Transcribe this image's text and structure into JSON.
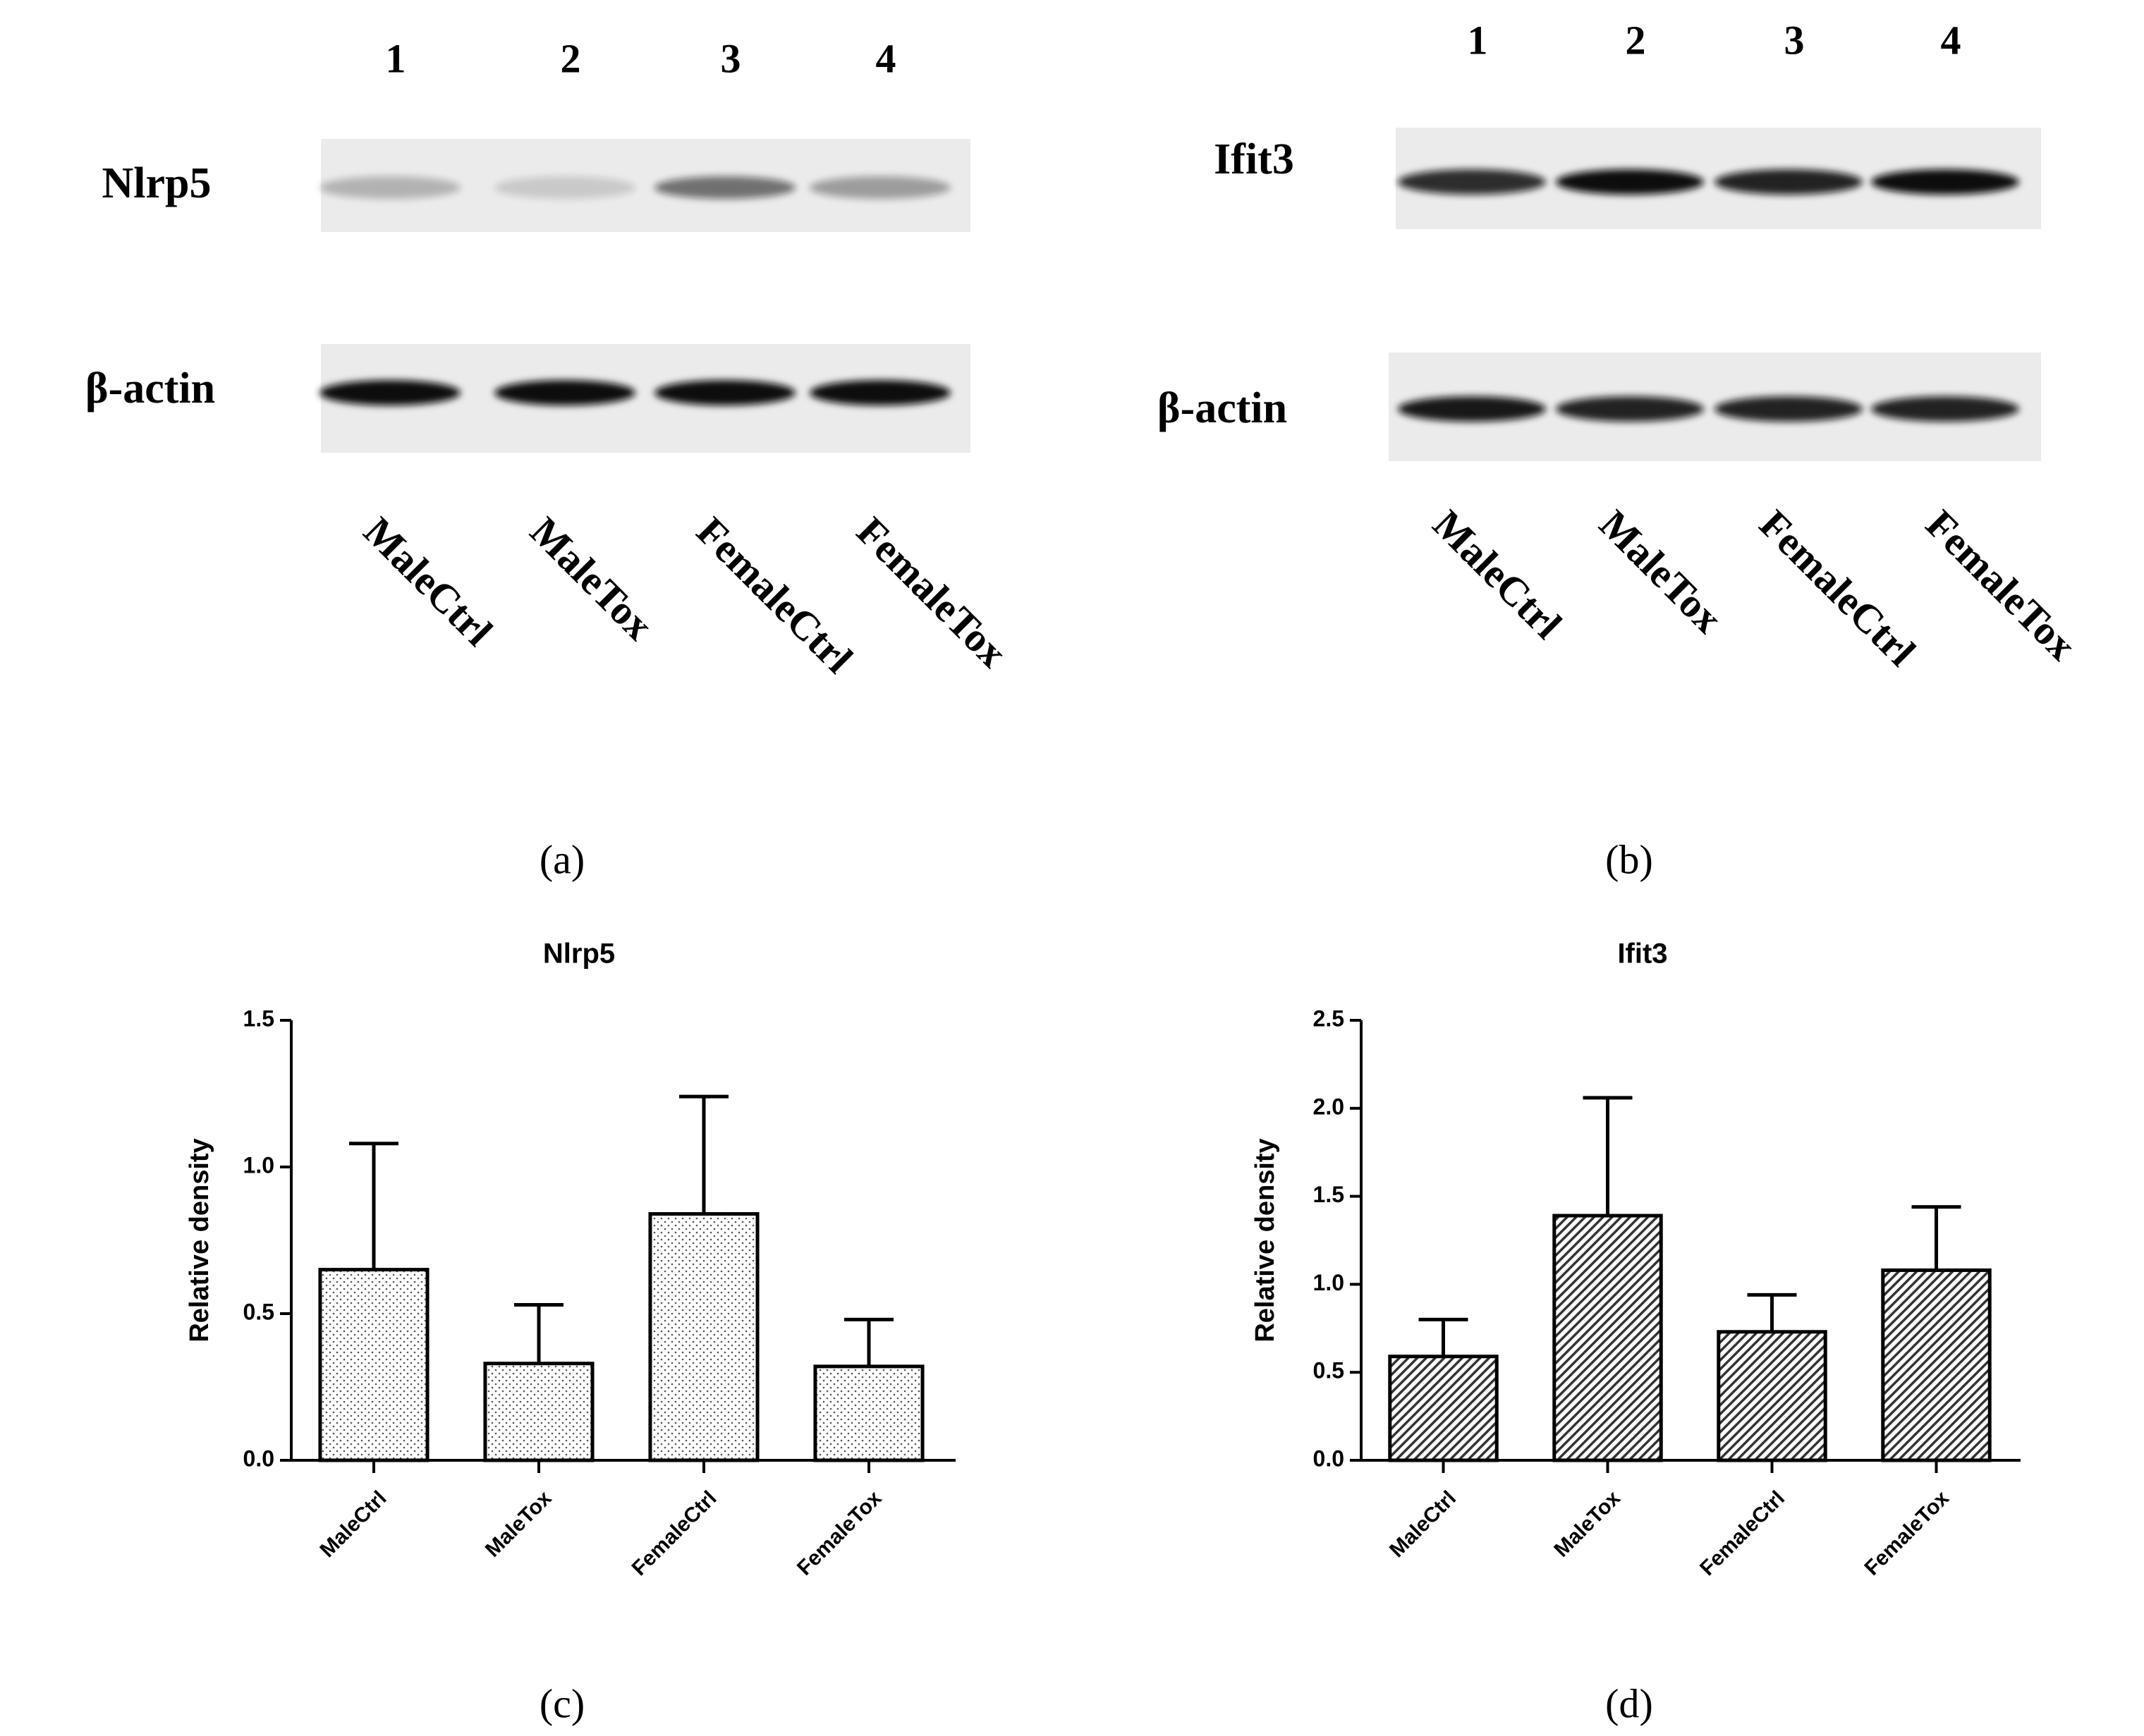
{
  "panels": {
    "a": {
      "label": "(a)",
      "lanes": [
        "1",
        "2",
        "3",
        "4"
      ],
      "rows": [
        "Nlrp5",
        "β-actin"
      ],
      "samples": [
        "MaleCtrl",
        "MaleTox",
        "FemaleCtrl",
        "FemaleTox"
      ]
    },
    "b": {
      "label": "(b)",
      "lanes": [
        "1",
        "2",
        "3",
        "4"
      ],
      "rows": [
        "Ifit3",
        "β-actin"
      ],
      "samples": [
        "MaleCtrl",
        "MaleTox",
        "FemaleCtrl",
        "FemaleTox"
      ]
    },
    "c": {
      "label": "(c)"
    },
    "d": {
      "label": "(d)"
    }
  },
  "chart_data": [
    {
      "type": "bar",
      "title": "Nlrp5",
      "y_label": "Relative density",
      "categories": [
        "MaleCtrl",
        "MaleTox",
        "FemaleCtrl",
        "FemaleTox"
      ],
      "values": [
        0.65,
        0.33,
        0.84,
        0.32
      ],
      "errors": [
        0.43,
        0.2,
        0.4,
        0.16
      ],
      "pattern": "dots",
      "color": "#000000",
      "ylim": [
        0,
        1.5
      ],
      "yticks": [
        {
          "value": 0,
          "label": "0.0"
        },
        0.5,
        {
          "value": 1,
          "label": "1.0"
        },
        1.5
      ]
    },
    {
      "type": "bar",
      "title": "Ifit3",
      "y_label": "Relative density",
      "categories": [
        "MaleCtrl",
        "MaleTox",
        "FemaleCtrl",
        "FemaleTox"
      ],
      "values": [
        0.59,
        1.39,
        0.73,
        1.08
      ],
      "errors": [
        0.21,
        0.67,
        0.21,
        0.36
      ],
      "pattern": "hatch",
      "color": "#000000",
      "ylim": [
        0,
        2.5
      ],
      "yticks": [
        {
          "value": 0,
          "label": "0.0"
        },
        0.5,
        {
          "value": 1,
          "label": "1.0"
        },
        1.5,
        {
          "value": 2,
          "label": "2.0"
        },
        2.5
      ]
    }
  ]
}
